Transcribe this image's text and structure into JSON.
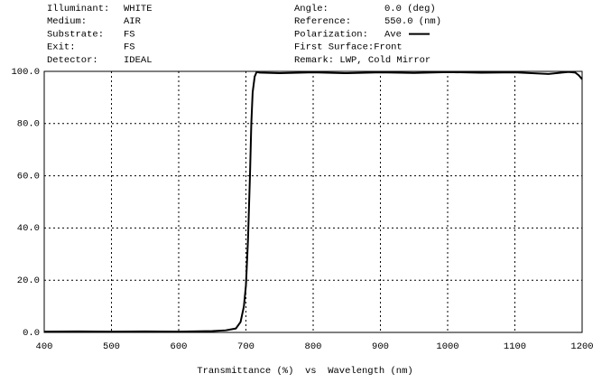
{
  "chart_data": {
    "type": "line",
    "header_left": [
      {
        "label": "Illuminant:",
        "value": "WHITE"
      },
      {
        "label": "Medium:",
        "value": "AIR"
      },
      {
        "label": "Substrate:",
        "value": "FS"
      },
      {
        "label": "Exit:",
        "value": "FS"
      },
      {
        "label": "Detector:",
        "value": "IDEAL"
      }
    ],
    "header_right": [
      {
        "label": "Angle:",
        "value": "0.0 (deg)"
      },
      {
        "label": "Reference:",
        "value": "550.0 (nm)"
      }
    ],
    "legend_label": "Polarization:",
    "header_right_after": [
      "First Surface:Front",
      "Remark: LWP, Cold Mirror"
    ],
    "xlabel": "Transmittance (%)  vs  Wavelength (nm)",
    "x": [
      400,
      450,
      500,
      550,
      600,
      650,
      670,
      685,
      692,
      697,
      700,
      703,
      706,
      708,
      710,
      713,
      716,
      720,
      750,
      800,
      850,
      900,
      950,
      1000,
      1050,
      1100,
      1150,
      1180,
      1190,
      1195,
      1200
    ],
    "series": [
      {
        "name": "Ave",
        "color": "#000000",
        "values": [
          0.3,
          0.4,
          0.3,
          0.4,
          0.3,
          0.5,
          0.8,
          1.5,
          4,
          10,
          18,
          35,
          60,
          80,
          92,
          98,
          99.8,
          99.5,
          99.3,
          99.6,
          99.3,
          99.6,
          99.4,
          99.7,
          99.5,
          99.6,
          99.0,
          99.8,
          99.5,
          98.5,
          97
        ]
      }
    ],
    "xlim": [
      400,
      1200
    ],
    "ylim": [
      0,
      100
    ],
    "xticks": [
      400,
      500,
      600,
      700,
      800,
      900,
      1000,
      1100,
      1200
    ],
    "yticks": [
      {
        "value": 0,
        "label": "0.0"
      },
      {
        "value": 20,
        "label": "20.0"
      },
      {
        "value": 40,
        "label": "40.0"
      },
      {
        "value": 60,
        "label": "60.0"
      },
      {
        "value": 80,
        "label": "80.0"
      },
      {
        "value": 100,
        "label": "100.0"
      }
    ],
    "grid": true
  }
}
